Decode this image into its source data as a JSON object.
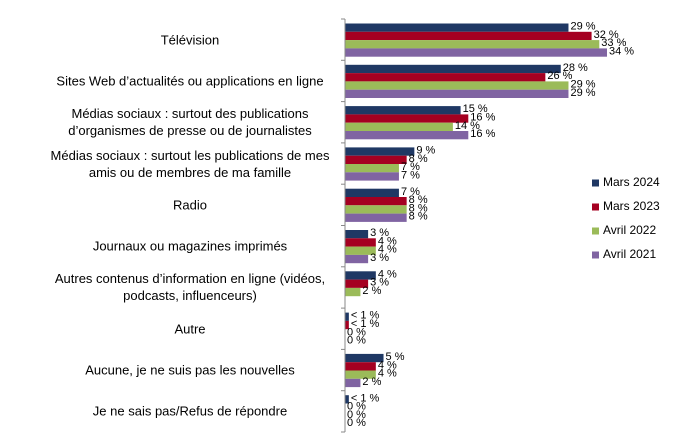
{
  "chart_data": {
    "type": "bar",
    "orientation": "horizontal",
    "categories": [
      "Télévision",
      "Sites Web d’actualités ou applications en ligne",
      "Médias sociaux : surtout des publications d’organismes de presse ou de journalistes",
      "Médias sociaux : surtout les publications de mes amis ou de membres de ma famille",
      "Radio",
      "Journaux ou magazines imprimés",
      "Autres contenus d’information en ligne (vidéos, podcasts, influenceurs)",
      "Autre",
      "Aucune, je ne suis pas les nouvelles",
      "Je ne sais pas/Refus de répondre"
    ],
    "series": [
      {
        "name": "Mars 2024",
        "color": "#1f3864",
        "values": [
          29,
          28,
          15,
          9,
          7,
          3,
          4,
          0.5,
          5,
          0.5
        ],
        "value_labels": [
          "29 %",
          "28 %",
          "15 %",
          "9 %",
          "7 %",
          "3 %",
          "4 %",
          "< 1 %",
          "5 %",
          "< 1 %"
        ]
      },
      {
        "name": "Mars 2023",
        "color": "#a50021",
        "values": [
          32,
          26,
          16,
          8,
          8,
          4,
          3,
          0.5,
          4,
          0
        ],
        "value_labels": [
          "32 %",
          "26 %",
          "16 %",
          "8 %",
          "8 %",
          "4 %",
          "3 %",
          "< 1 %",
          "4 %",
          "0 %"
        ]
      },
      {
        "name": "Avril 2022",
        "color": "#9bbb59",
        "values": [
          33,
          29,
          14,
          7,
          8,
          4,
          2,
          0,
          4,
          0
        ],
        "value_labels": [
          "33 %",
          "29 %",
          "14 %",
          "7 %",
          "8 %",
          "4 %",
          "2 %",
          "0 %",
          "4 %",
          "0 %"
        ]
      },
      {
        "name": "Avril 2021",
        "color": "#8064a2",
        "values": [
          34,
          29,
          16,
          7,
          8,
          3,
          null,
          0,
          2,
          0
        ],
        "value_labels": [
          "34 %",
          "29 %",
          "16 %",
          "7 %",
          "8 %",
          "3 %",
          null,
          "0 %",
          "2 %",
          "0 %"
        ]
      }
    ],
    "xlim": [
      0,
      34
    ],
    "legend": "right"
  }
}
